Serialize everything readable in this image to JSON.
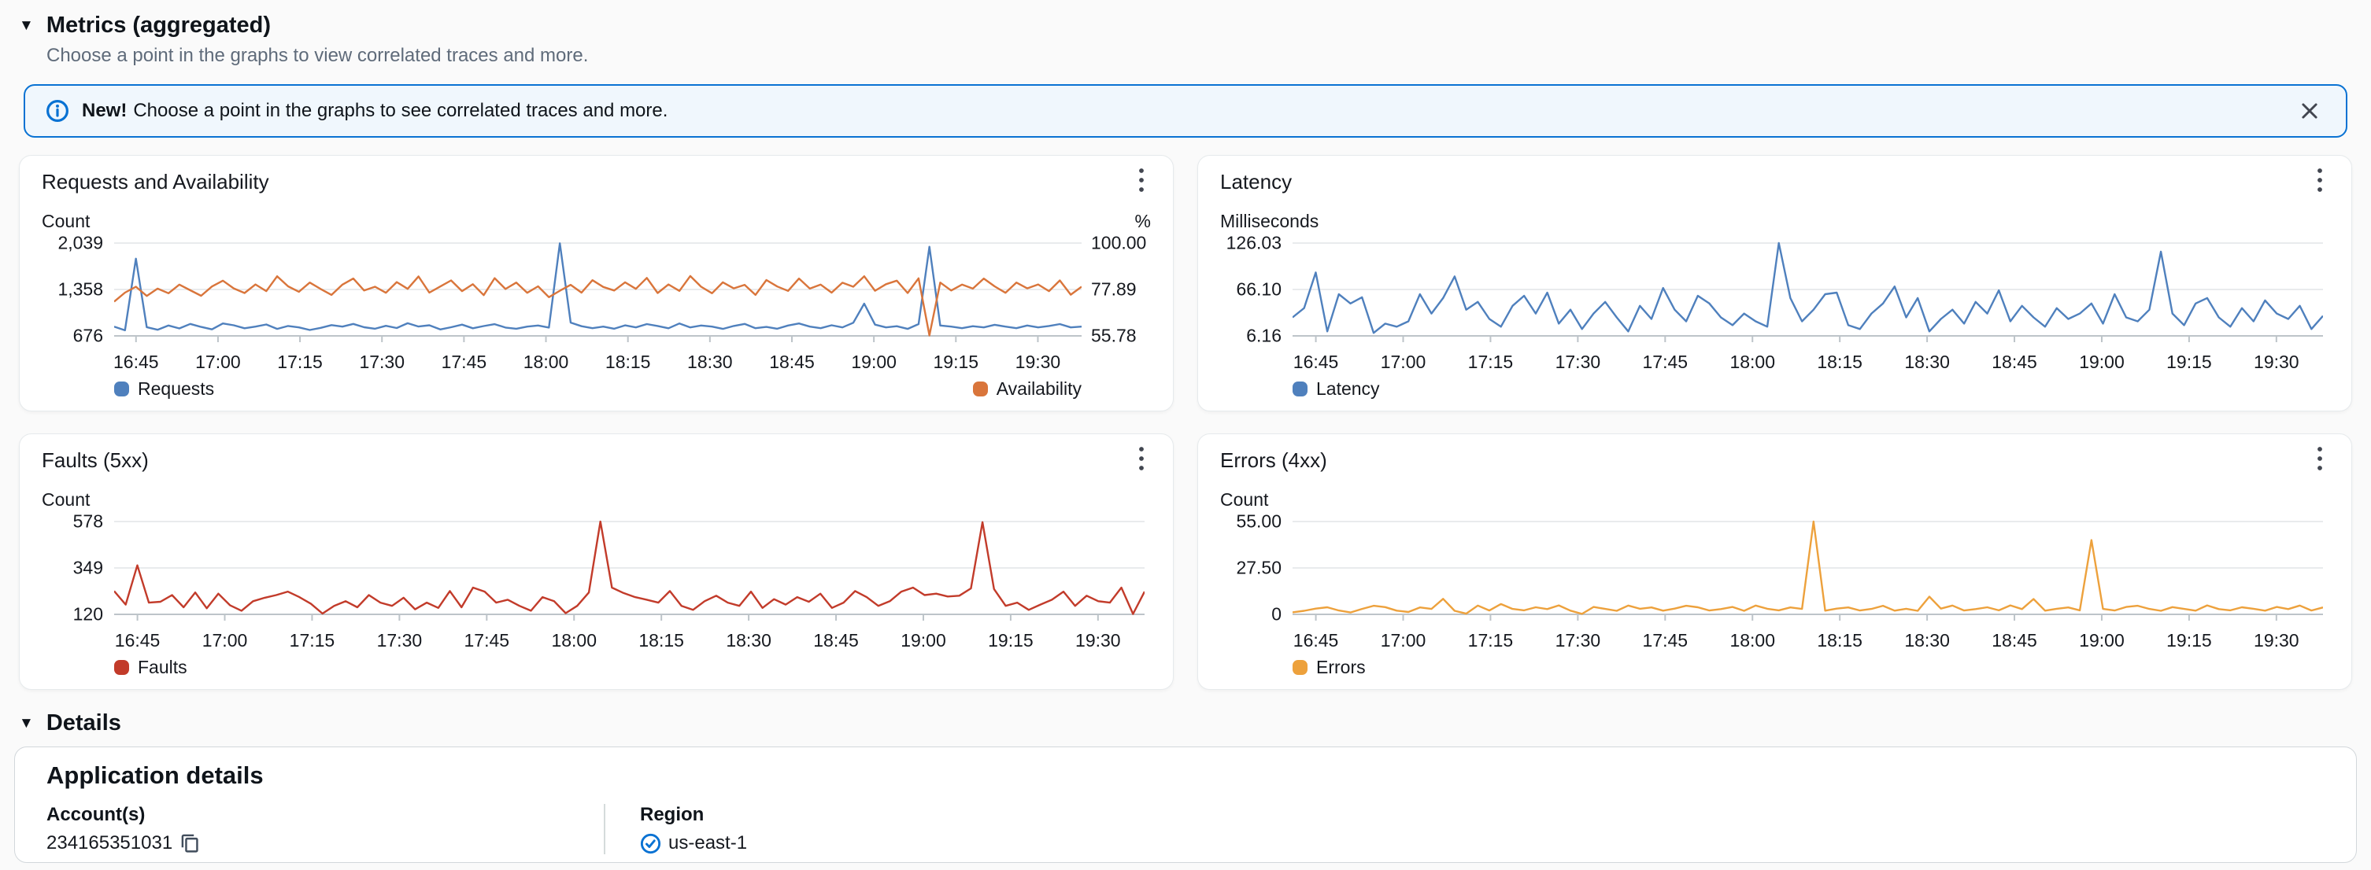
{
  "header": {
    "collapse_icon": "▼",
    "title": "Metrics (aggregated)",
    "subtitle": "Choose a point in the graphs to view correlated traces and more."
  },
  "banner": {
    "badge": "New!",
    "message": "Choose a point in the graphs to see correlated traces and more.",
    "accent_color": "#0972d3"
  },
  "details": {
    "collapse_icon": "▼",
    "section_title": "Details",
    "card_title": "Application details",
    "account_label": "Account(s)",
    "account_value": "234165351031",
    "region_label": "Region",
    "region_value": "us-east-1"
  },
  "chart_data": [
    {
      "type": "line",
      "title": "Requests and Availability",
      "unit_left": "Count",
      "unit_right": "%",
      "x_ticks": [
        "16:45",
        "17:00",
        "17:15",
        "17:30",
        "17:45",
        "18:00",
        "18:15",
        "18:30",
        "18:45",
        "19:00",
        "19:15",
        "19:30"
      ],
      "y_left": {
        "ticks": [
          "2,039",
          "1,358",
          "676"
        ],
        "min": 676,
        "max": 2039
      },
      "y_right": {
        "ticks": [
          "100.00",
          "77.89",
          "55.78"
        ],
        "min": 55.78,
        "max": 100
      },
      "legend_position": "split",
      "series": [
        {
          "name": "Requests",
          "color": "#4f80bd",
          "axis": "left",
          "values": [
            812,
            758,
            1810,
            804,
            766,
            828,
            786,
            851,
            808,
            772,
            858,
            832,
            788,
            812,
            843,
            779,
            822,
            801,
            763,
            794,
            834,
            812,
            852,
            803,
            781,
            824,
            791,
            862,
            813,
            832,
            771,
            803,
            841,
            788,
            820,
            848,
            799,
            781,
            812,
            829,
            799,
            2035,
            871,
            818,
            789,
            812,
            781,
            831,
            801,
            849,
            822,
            788,
            859,
            801,
            829,
            812,
            779,
            821,
            851,
            789,
            808,
            781,
            829,
            858,
            812,
            789,
            832,
            801,
            869,
            1150,
            841,
            801,
            818,
            779,
            849,
            1985,
            829,
            812,
            789,
            818,
            801,
            839,
            812,
            789,
            829,
            801,
            821,
            849,
            801,
            812
          ]
        },
        {
          "name": "Availability",
          "color": "#d9753b",
          "axis": "right",
          "values": [
            72.1,
            76.4,
            79.2,
            74.8,
            78.3,
            76.1,
            80.2,
            77.5,
            74.9,
            79.3,
            82.1,
            78.4,
            76.2,
            80.3,
            77.1,
            84.2,
            79.4,
            76.8,
            81.2,
            78.1,
            75.3,
            80.2,
            83.1,
            77.4,
            79.2,
            76.3,
            81.4,
            78.2,
            84.1,
            76.4,
            79.3,
            82.2,
            77.1,
            80.4,
            75.2,
            83.3,
            78.1,
            81.2,
            76.3,
            79.4,
            74.2,
            77.3,
            80.1,
            76.4,
            82.3,
            79.1,
            77.4,
            81.3,
            78.2,
            83.4,
            76.2,
            80.3,
            77.2,
            84.3,
            79.2,
            76.1,
            81.3,
            78.4,
            80.1,
            75.3,
            82.4,
            79.3,
            77.2,
            83.1,
            78.3,
            80.2,
            76.4,
            81.1,
            79.2,
            84.2,
            77.3,
            80.4,
            82.1,
            76.2,
            83.2,
            56.0,
            81.2,
            77.4,
            80.2,
            78.3,
            83.1,
            79.4,
            76.3,
            81.2,
            78.4,
            80.3,
            77.1,
            82.2,
            75.4,
            79.2
          ]
        }
      ]
    },
    {
      "type": "line",
      "title": "Latency",
      "unit_left": "Milliseconds",
      "unit_right": "",
      "x_ticks": [
        "16:45",
        "17:00",
        "17:15",
        "17:30",
        "17:45",
        "18:00",
        "18:15",
        "18:30",
        "18:45",
        "19:00",
        "19:15",
        "19:30"
      ],
      "y_left": {
        "ticks": [
          "126.03",
          "66.10",
          "6.16"
        ],
        "min": 6.16,
        "max": 126.03
      },
      "legend_position": "left",
      "series": [
        {
          "name": "Latency",
          "color": "#4f80bd",
          "axis": "left",
          "values": [
            30,
            42,
            88,
            12,
            60,
            48,
            56,
            10,
            22,
            18,
            25,
            60,
            35,
            55,
            83,
            40,
            50,
            28,
            18,
            45,
            58,
            35,
            62,
            22,
            40,
            15,
            35,
            50,
            30,
            12,
            45,
            28,
            68,
            40,
            25,
            58,
            48,
            30,
            20,
            35,
            25,
            18,
            126,
            55,
            25,
            40,
            60,
            62,
            20,
            15,
            35,
            48,
            70,
            30,
            55,
            12,
            28,
            40,
            22,
            50,
            35,
            65,
            25,
            45,
            30,
            18,
            42,
            28,
            35,
            48,
            22,
            60,
            30,
            25,
            40,
            115,
            35,
            20,
            48,
            55,
            30,
            18,
            42,
            25,
            52,
            35,
            28,
            45,
            15,
            32
          ]
        }
      ]
    },
    {
      "type": "line",
      "title": "Faults (5xx)",
      "unit_left": "Count",
      "unit_right": "",
      "x_ticks": [
        "16:45",
        "17:00",
        "17:15",
        "17:30",
        "17:45",
        "18:00",
        "18:15",
        "18:30",
        "18:45",
        "19:00",
        "19:15",
        "19:30"
      ],
      "y_left": {
        "ticks": [
          "578",
          "349",
          "120"
        ],
        "min": 120,
        "max": 578
      },
      "legend_position": "left",
      "series": [
        {
          "name": "Faults",
          "color": "#c23b2a",
          "axis": "left",
          "values": [
            235,
            168,
            362,
            178,
            182,
            215,
            155,
            228,
            150,
            222,
            165,
            138,
            185,
            202,
            215,
            232,
            205,
            172,
            124,
            162,
            185,
            155,
            215,
            178,
            162,
            202,
            145,
            178,
            152,
            235,
            155,
            252,
            232,
            178,
            192,
            162,
            138,
            205,
            185,
            126,
            162,
            228,
            578,
            252,
            225,
            205,
            192,
            178,
            235,
            162,
            142,
            185,
            212,
            178,
            162,
            232,
            152,
            195,
            168,
            205,
            182,
            222,
            152,
            178,
            235,
            205,
            162,
            185,
            232,
            252,
            215,
            222,
            208,
            212,
            248,
            575,
            245,
            162,
            178,
            142,
            168,
            192,
            232,
            162,
            212,
            185,
            178,
            252,
            122,
            232
          ]
        }
      ]
    },
    {
      "type": "line",
      "title": "Errors (4xx)",
      "unit_left": "Count",
      "unit_right": "",
      "x_ticks": [
        "16:45",
        "17:00",
        "17:15",
        "17:30",
        "17:45",
        "18:00",
        "18:15",
        "18:30",
        "18:45",
        "19:00",
        "19:15",
        "19:30"
      ],
      "y_left": {
        "ticks": [
          "55.00",
          "27.50",
          "0"
        ],
        "min": 0,
        "max": 55
      },
      "legend_position": "left",
      "series": [
        {
          "name": "Errors",
          "color": "#eda13c",
          "axis": "left",
          "values": [
            1.2,
            2.1,
            3.4,
            4.2,
            2.3,
            1.1,
            3.2,
            5.1,
            4.3,
            2.2,
            1.4,
            4.1,
            3.2,
            9.2,
            2.1,
            0.4,
            5.2,
            2.3,
            6.1,
            3.2,
            2.4,
            4.2,
            3.1,
            5.3,
            2.2,
            0.3,
            4.4,
            3.2,
            2.1,
            5.2,
            3.3,
            4.1,
            2.2,
            3.4,
            5.1,
            4.2,
            2.3,
            3.1,
            4.4,
            2.1,
            5.2,
            3.3,
            2.4,
            4.1,
            3.2,
            55.0,
            2.2,
            3.4,
            4.1,
            2.3,
            3.2,
            5.1,
            2.2,
            3.3,
            2.1,
            10.5,
            3.4,
            5.2,
            2.3,
            3.1,
            4.2,
            2.4,
            5.3,
            3.1,
            9.1,
            2.2,
            3.3,
            4.1,
            2.4,
            44.0,
            3.2,
            2.3,
            4.4,
            5.1,
            3.2,
            2.1,
            4.3,
            3.2,
            2.2,
            5.3,
            3.1,
            2.4,
            4.2,
            3.3,
            2.2,
            4.4,
            3.1,
            5.2,
            2.3,
            4.1
          ]
        }
      ]
    }
  ]
}
